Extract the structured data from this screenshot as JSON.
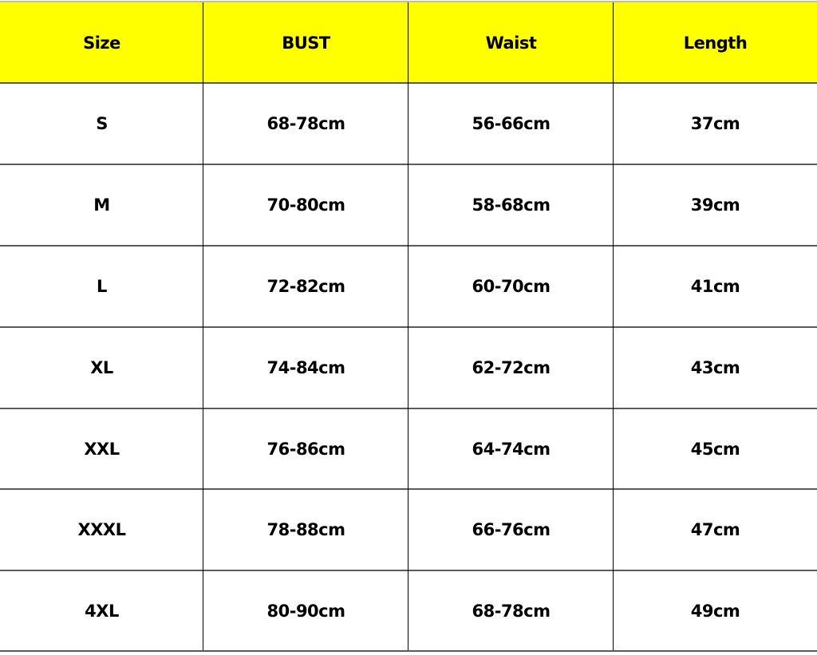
{
  "colors": {
    "header_background": "#ffff00",
    "text": "#000000"
  },
  "table": {
    "headers": [
      "Size",
      "BUST",
      "Waist",
      "Length"
    ],
    "rows": [
      [
        "S",
        "68-78cm",
        "56-66cm",
        "37cm"
      ],
      [
        "M",
        "70-80cm",
        "58-68cm",
        "39cm"
      ],
      [
        "L",
        "72-82cm",
        "60-70cm",
        "41cm"
      ],
      [
        "XL",
        "74-84cm",
        "62-72cm",
        "43cm"
      ],
      [
        "XXL",
        "76-86cm",
        "64-74cm",
        "45cm"
      ],
      [
        "XXXL",
        "78-88cm",
        "66-76cm",
        "47cm"
      ],
      [
        "4XL",
        "80-90cm",
        "68-78cm",
        "49cm"
      ]
    ]
  }
}
